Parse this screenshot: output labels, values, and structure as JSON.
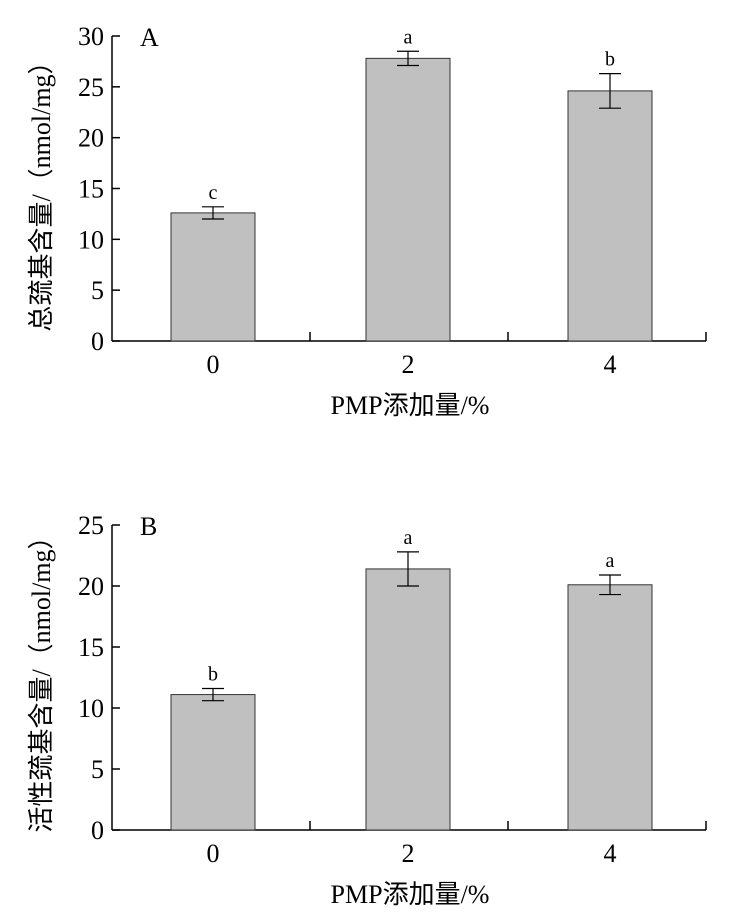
{
  "chart_data": [
    {
      "type": "bar",
      "panel_label": "A",
      "categories": [
        "0",
        "2",
        "4"
      ],
      "values": [
        12.6,
        27.8,
        24.6
      ],
      "errors": [
        0.6,
        0.7,
        1.7
      ],
      "significance": [
        "c",
        "a",
        "b"
      ],
      "xlabel": "PMP添加量/%",
      "ylabel": "总巯基含量/（nmol/mg）",
      "ylim": [
        0,
        30
      ],
      "yticks": [
        "0",
        "5",
        "10",
        "15",
        "20",
        "25",
        "30"
      ],
      "bar_color": "#c0c0c0",
      "grid": false
    },
    {
      "type": "bar",
      "panel_label": "B",
      "categories": [
        "0",
        "2",
        "4"
      ],
      "values": [
        11.1,
        21.4,
        20.1
      ],
      "errors": [
        0.5,
        1.4,
        0.8
      ],
      "significance": [
        "b",
        "a",
        "a"
      ],
      "xlabel": "PMP添加量/%",
      "ylabel": "活性巯基含量/（nmol/mg）",
      "ylim": [
        0,
        25
      ],
      "yticks": [
        "0",
        "5",
        "10",
        "15",
        "20",
        "25"
      ],
      "bar_color": "#c0c0c0",
      "grid": false
    }
  ]
}
